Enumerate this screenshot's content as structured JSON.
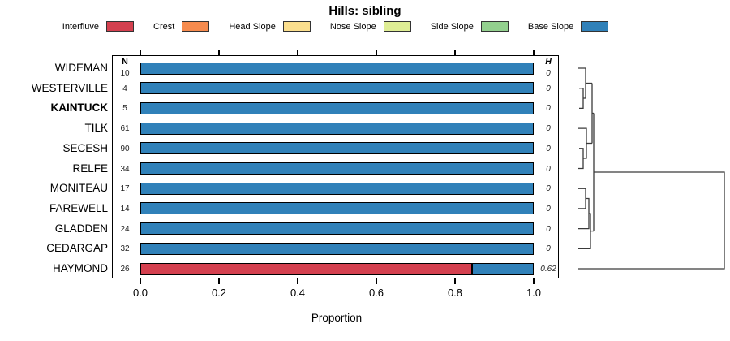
{
  "chart_data": {
    "type": "bar",
    "orientation": "horizontal-stacked",
    "title": "Hills: sibling",
    "xlabel": "Proportion",
    "xlim": [
      0.0,
      1.0
    ],
    "x_ticks": [
      "0.0",
      "0.2",
      "0.4",
      "0.6",
      "0.8",
      "1.0"
    ],
    "grid": false,
    "legend_position": "top",
    "n_header": "N",
    "h_header": "H",
    "classes": [
      "Interfluve",
      "Crest",
      "Head Slope",
      "Nose Slope",
      "Side Slope",
      "Base Slope"
    ],
    "colors": {
      "Interfluve": "#d4404f",
      "Crest": "#f68b4e",
      "Head Slope": "#fbdf8e",
      "Nose Slope": "#dfee95",
      "Side Slope": "#93d08e",
      "Base Slope": "#3081b9"
    },
    "rows": [
      {
        "label": "WIDEMAN",
        "n": "10",
        "h": "0",
        "bold": false,
        "segments": [
          {
            "class": "Base Slope",
            "value": 1.0
          }
        ]
      },
      {
        "label": "WESTERVILLE",
        "n": "4",
        "h": "0",
        "bold": false,
        "segments": [
          {
            "class": "Base Slope",
            "value": 1.0
          }
        ]
      },
      {
        "label": "KAINTUCK",
        "n": "5",
        "h": "0",
        "bold": true,
        "segments": [
          {
            "class": "Base Slope",
            "value": 1.0
          }
        ]
      },
      {
        "label": "TILK",
        "n": "61",
        "h": "0",
        "bold": false,
        "segments": [
          {
            "class": "Base Slope",
            "value": 1.0
          }
        ]
      },
      {
        "label": "SECESH",
        "n": "90",
        "h": "0",
        "bold": false,
        "segments": [
          {
            "class": "Base Slope",
            "value": 1.0
          }
        ]
      },
      {
        "label": "RELFE",
        "n": "34",
        "h": "0",
        "bold": false,
        "segments": [
          {
            "class": "Base Slope",
            "value": 1.0
          }
        ]
      },
      {
        "label": "MONITEAU",
        "n": "17",
        "h": "0",
        "bold": false,
        "segments": [
          {
            "class": "Base Slope",
            "value": 1.0
          }
        ]
      },
      {
        "label": "FAREWELL",
        "n": "14",
        "h": "0",
        "bold": false,
        "segments": [
          {
            "class": "Base Slope",
            "value": 1.0
          }
        ]
      },
      {
        "label": "GLADDEN",
        "n": "24",
        "h": "0",
        "bold": false,
        "segments": [
          {
            "class": "Base Slope",
            "value": 1.0
          }
        ]
      },
      {
        "label": "CEDARGAP",
        "n": "32",
        "h": "0",
        "bold": false,
        "segments": [
          {
            "class": "Base Slope",
            "value": 1.0
          }
        ]
      },
      {
        "label": "HAYMOND",
        "n": "26",
        "h": "0.62",
        "bold": false,
        "segments": [
          {
            "class": "Interfluve",
            "value": 0.846
          },
          {
            "class": "Base Slope",
            "value": 0.154
          }
        ]
      }
    ],
    "dendrogram": {
      "topology": "((WIDEMAN,(WESTERVILLE,KAINTUCK)),(TILK,(SECESH,RELFE)),(((MONITEAU,FAREWELL),GLADDEN),CEDARGAP)) joined, then HAYMOND at max distance",
      "polylines": [
        [
          [
            14,
            48.7
          ],
          [
            19,
            48.7
          ],
          [
            19,
            73.4
          ],
          [
            14,
            73.4
          ]
        ],
        [
          [
            12,
            24
          ],
          [
            22,
            24
          ],
          [
            22,
            61
          ],
          [
            19,
            61
          ]
        ],
        [
          [
            22,
            42.5
          ],
          [
            30,
            42.5
          ]
        ],
        [
          [
            14,
            122.8
          ],
          [
            19,
            122.8
          ],
          [
            19,
            147.5
          ],
          [
            12,
            147.5
          ]
        ],
        [
          [
            12,
            98.1
          ],
          [
            23,
            98.1
          ],
          [
            23,
            135
          ],
          [
            19,
            135
          ]
        ],
        [
          [
            23,
            116.5
          ],
          [
            30,
            116.5
          ]
        ],
        [
          [
            30,
            42.5
          ],
          [
            30,
            116.5
          ]
        ],
        [
          [
            30,
            79.5
          ],
          [
            32,
            79.5
          ]
        ],
        [
          [
            12,
            172.2
          ],
          [
            22,
            172.2
          ],
          [
            22,
            196.9
          ],
          [
            12,
            196.9
          ]
        ],
        [
          [
            22,
            184.5
          ],
          [
            26,
            184.5
          ],
          [
            26,
            221.6
          ],
          [
            12,
            221.6
          ]
        ],
        [
          [
            26,
            203
          ],
          [
            28,
            203
          ],
          [
            28,
            246.3
          ],
          [
            12,
            246.3
          ]
        ],
        [
          [
            28,
            224.6
          ],
          [
            32,
            224.6
          ]
        ],
        [
          [
            32,
            79.5
          ],
          [
            32,
            224.6
          ]
        ],
        [
          [
            32,
            152
          ],
          [
            193,
            152
          ],
          [
            193,
            271
          ],
          [
            12,
            271
          ]
        ]
      ]
    }
  }
}
